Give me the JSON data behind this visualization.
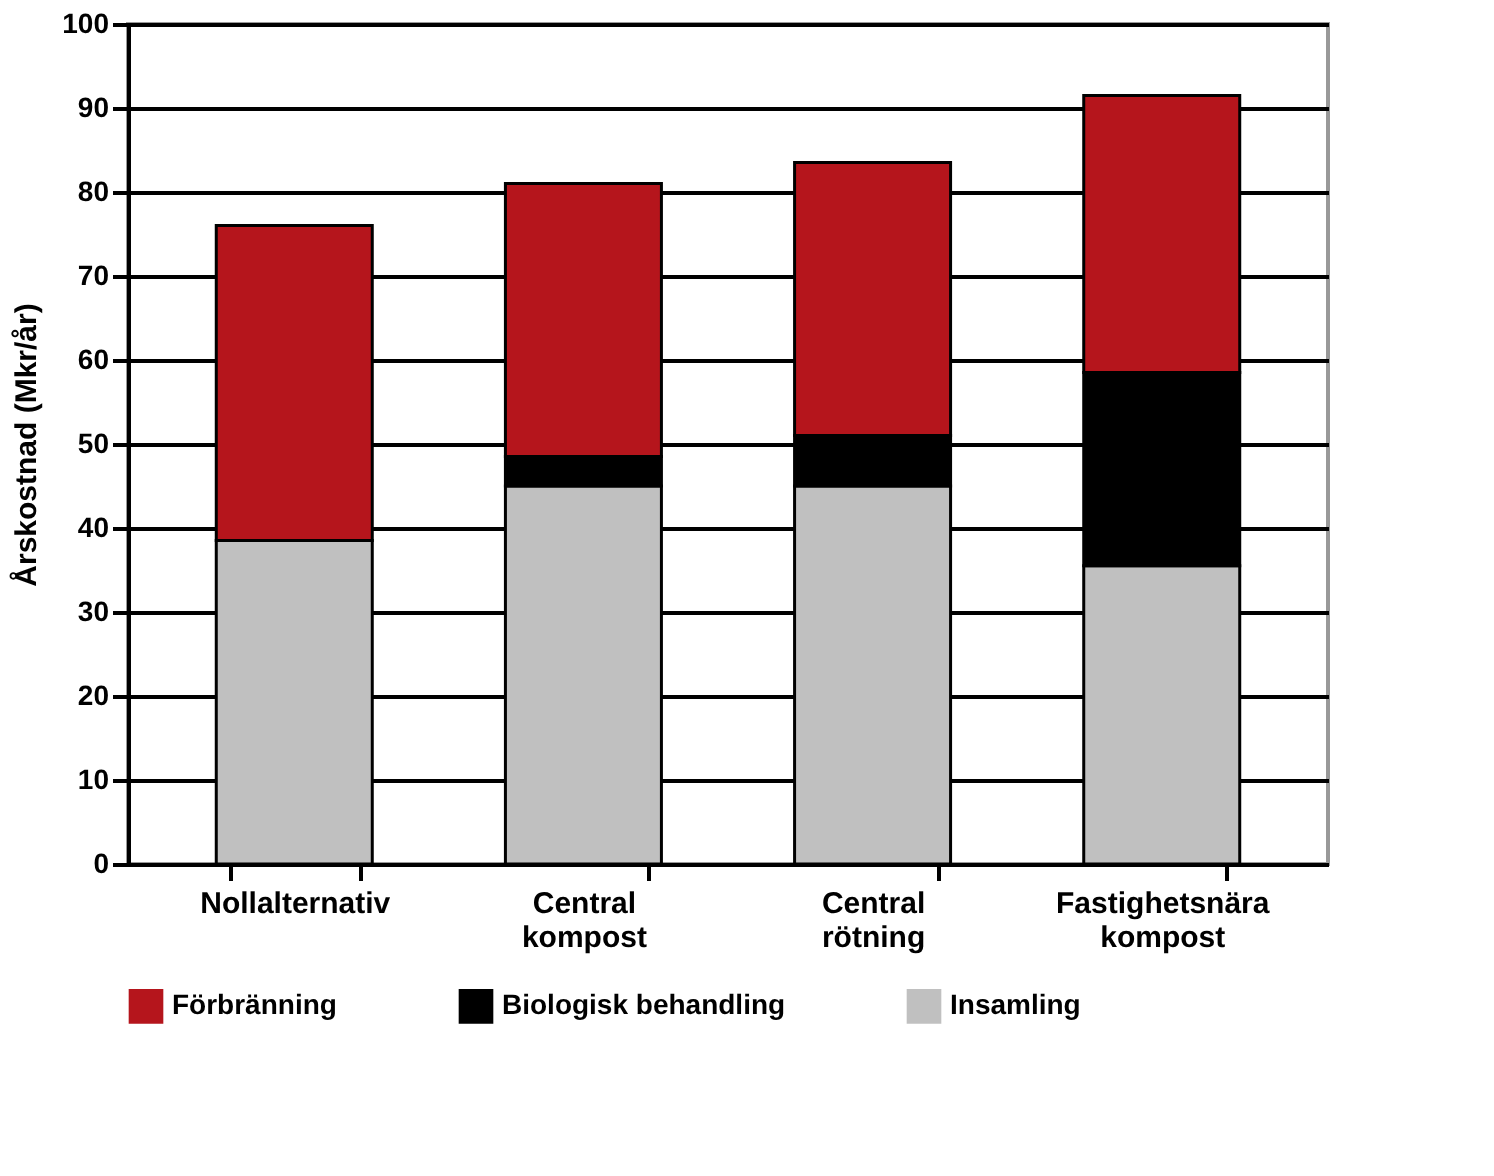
{
  "chart_data": {
    "type": "bar",
    "stacked": true,
    "ylabel": "Årskostnad (Mkr/år)",
    "categories": [
      "Nollalternativ",
      "Central kompost",
      "Central rötning",
      "Fastighetsnära kompost"
    ],
    "series": [
      {
        "name": "Insamling",
        "color": "#c0c0c0",
        "values": [
          38.5,
          45,
          45,
          35.5
        ]
      },
      {
        "name": "Biologisk behandling",
        "color": "#000000",
        "values": [
          0,
          3.5,
          6,
          23
        ]
      },
      {
        "name": "Förbränning",
        "color": "#b5151c",
        "values": [
          37.5,
          32.5,
          32.5,
          33
        ]
      }
    ],
    "ylim": [
      0,
      100
    ],
    "yticks": [
      0,
      10,
      20,
      30,
      40,
      50,
      60,
      70,
      80,
      90,
      100
    ],
    "grid": "y",
    "legend": "bottom"
  }
}
